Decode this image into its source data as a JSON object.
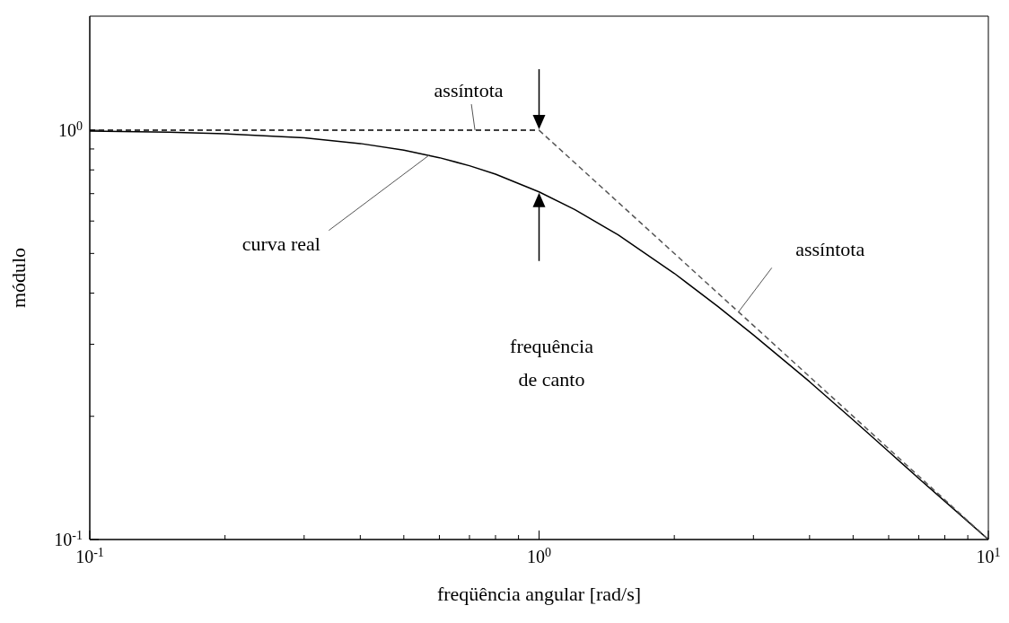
{
  "chart_data": {
    "type": "line",
    "xlabel": "freqüência angular [rad/s]",
    "ylabel": "módulo",
    "log": "xy",
    "xlim": [
      0.1,
      10
    ],
    "ylim": [
      0.1,
      1.9
    ],
    "xticks": [
      {
        "value": 0.1,
        "label": "10$^{-1}$"
      },
      {
        "value": 0.2,
        "label": null
      },
      {
        "value": 0.3,
        "label": null
      },
      {
        "value": 0.4,
        "label": null
      },
      {
        "value": 0.5,
        "label": null
      },
      {
        "value": 0.6,
        "label": null
      },
      {
        "value": 0.7,
        "label": null
      },
      {
        "value": 0.8,
        "label": null
      },
      {
        "value": 0.9,
        "label": null
      },
      {
        "value": 1,
        "label": "10$^{0}$"
      },
      {
        "value": 2,
        "label": null
      },
      {
        "value": 3,
        "label": null
      },
      {
        "value": 4,
        "label": null
      },
      {
        "value": 5,
        "label": null
      },
      {
        "value": 6,
        "label": null
      },
      {
        "value": 7,
        "label": null
      },
      {
        "value": 8,
        "label": null
      },
      {
        "value": 9,
        "label": null
      },
      {
        "value": 10,
        "label": "10$^{1}$"
      }
    ],
    "yticks": [
      {
        "value": 0.1,
        "label": "10$^{-1}$"
      },
      {
        "value": 0.2,
        "label": null
      },
      {
        "value": 0.3,
        "label": null
      },
      {
        "value": 0.4,
        "label": null
      },
      {
        "value": 0.5,
        "label": null
      },
      {
        "value": 0.6,
        "label": null
      },
      {
        "value": 0.7,
        "label": null
      },
      {
        "value": 0.8,
        "label": null
      },
      {
        "value": 0.9,
        "label": null
      },
      {
        "value": 1,
        "label": "10$^{0}$"
      }
    ],
    "marker": "none",
    "series": [
      {
        "color": "#000000",
        "line_style": "solid",
        "x": [
          0.1,
          0.15,
          0.2,
          0.3,
          0.4,
          0.5,
          0.6,
          0.7,
          0.8,
          1,
          1.2,
          1.5,
          2,
          2.5,
          3,
          4,
          5,
          6,
          7,
          8,
          10
        ],
        "values": [
          0.995,
          0.989,
          0.98,
          0.958,
          0.928,
          0.894,
          0.857,
          0.819,
          0.781,
          0.707,
          0.64,
          0.555,
          0.447,
          0.371,
          0.316,
          0.243,
          0.196,
          0.164,
          0.141,
          0.124,
          0.1
        ]
      },
      {
        "color": "#000000",
        "line_style": "dashed",
        "x": [
          0.1,
          1
        ],
        "values": [
          1,
          1
        ]
      },
      {
        "color": "#555555",
        "line_style": "dashed",
        "x": [
          1,
          10
        ],
        "values": [
          1,
          0.1
        ]
      }
    ],
    "annotations": [
      {
        "text": "assíntota",
        "x": 0.72,
        "y": 1
      },
      {
        "text": "curva real",
        "x": 0.57,
        "y": 0.87
      },
      {
        "text": "assíntota",
        "x": 2.78,
        "y": 0.36
      },
      "frequência de canto"
    ]
  }
}
